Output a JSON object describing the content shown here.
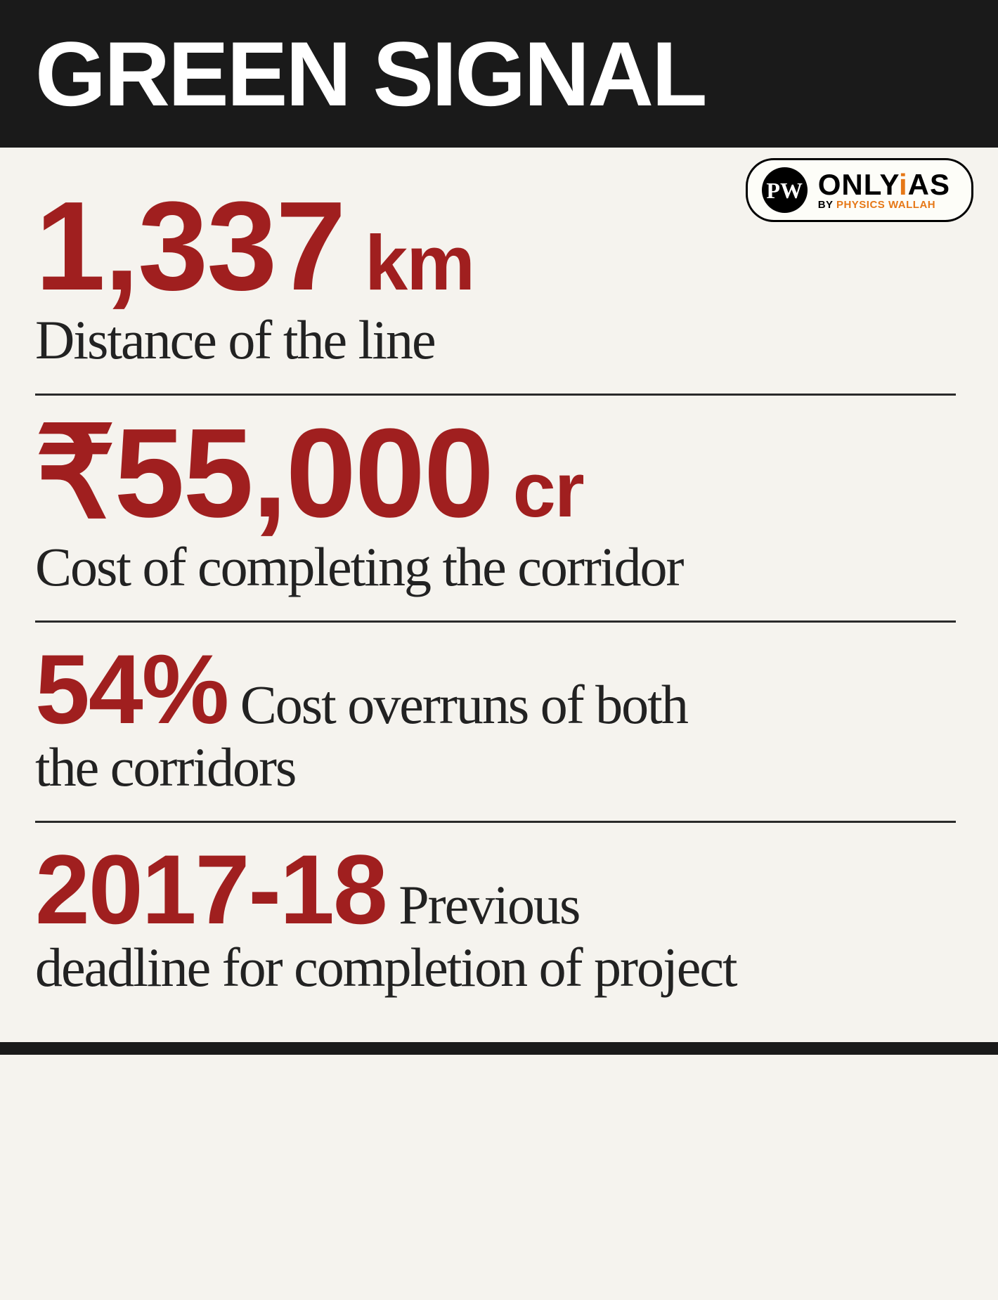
{
  "header": {
    "title": "GREEN SIGNAL"
  },
  "logo": {
    "pw_initials": "PW",
    "brand_pre": "ONLY",
    "brand_post": "AS",
    "brand_dot": "i",
    "byline_by": "BY ",
    "byline_name": "PHYSICS WALLAH"
  },
  "stats": [
    {
      "value": "1,337",
      "unit": " km",
      "desc": "Distance of the line",
      "value_size": "huge"
    },
    {
      "value": "₹55,000",
      "unit": " cr",
      "desc": "Cost of completing the corridor",
      "value_size": "huge"
    },
    {
      "value": "54%",
      "unit": "",
      "desc_inline": " Cost overruns of both",
      "desc_line2": "the corridors",
      "value_size": "large"
    },
    {
      "value": "2017-18",
      "unit": "",
      "desc_inline": " Previous",
      "desc_line2": "deadline for completion of project",
      "value_size": "large"
    }
  ],
  "colors": {
    "header_bg": "#1a1a1a",
    "value_color": "#a01f1f",
    "text_color": "#222222",
    "accent_orange": "#e67817",
    "background": "#f5f3ee"
  }
}
